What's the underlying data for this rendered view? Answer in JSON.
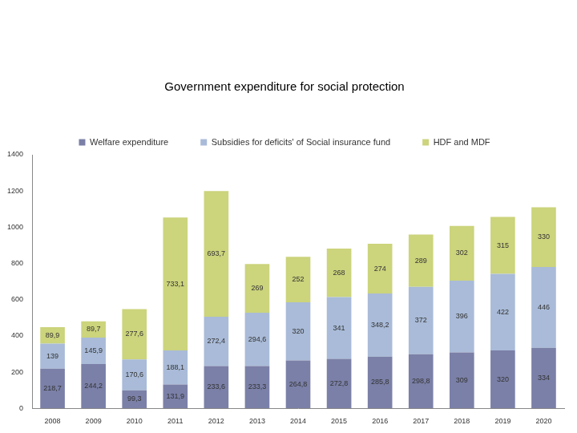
{
  "chart_data": {
    "type": "bar",
    "title": "Government expenditure for social protection",
    "categories": [
      "2008",
      "2009",
      "2010",
      "2011",
      "2012",
      "2013",
      "2014",
      "2015",
      "2016",
      "2017",
      "2018",
      "2019",
      "2020"
    ],
    "series": [
      {
        "name": "Welfare expenditure",
        "color": "#7b80a8",
        "values": [
          218.7,
          244.2,
          99.3,
          131.9,
          233.6,
          233.3,
          264.8,
          272.8,
          285.8,
          298.8,
          309,
          320,
          334
        ],
        "value_labels": [
          "218,7",
          "244,2",
          "99,3",
          "131,9",
          "233,6",
          "233,3",
          "264,8",
          "272,8",
          "285,8",
          "298,8",
          "309",
          "320",
          "334"
        ]
      },
      {
        "name": "Subsidies for deficits' of Social insurance fund",
        "color": "#a9bbd8",
        "values": [
          139,
          145.9,
          170.6,
          188.1,
          272.4,
          294.6,
          320,
          341,
          348.2,
          372,
          396,
          422,
          446
        ],
        "value_labels": [
          "139",
          "145,9",
          "170,6",
          "188,1",
          "272,4",
          "294,6",
          "320",
          "341",
          "348,2",
          "372",
          "396",
          "422",
          "446"
        ]
      },
      {
        "name": "HDF and MDF",
        "color": "#ccd47c",
        "values": [
          89.9,
          89.7,
          277.6,
          733.1,
          693.7,
          269,
          252,
          268,
          274,
          289,
          302,
          315,
          330
        ],
        "value_labels": [
          "89,9",
          "89,7",
          "277,6",
          "733,1",
          "693,7",
          "269",
          "252",
          "268",
          "274",
          "289",
          "302",
          "315",
          "330"
        ]
      }
    ],
    "ylim": [
      0,
      1400
    ],
    "yticks": [
      0,
      200,
      400,
      600,
      800,
      1000,
      1200,
      1400
    ],
    "stacked": true,
    "grid": false,
    "legend": "top",
    "data_labels": true
  }
}
